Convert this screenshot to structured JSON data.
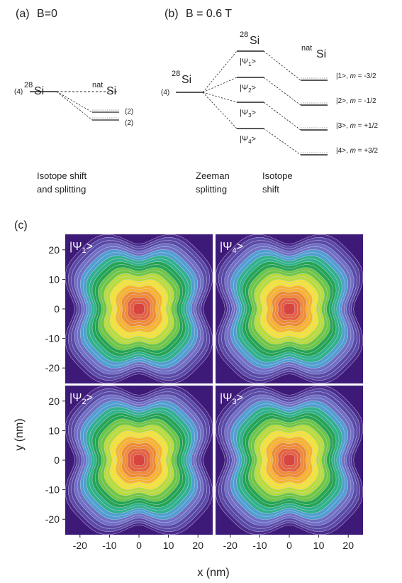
{
  "panel_a": {
    "label": "(a)",
    "title": "B=0",
    "left_sup": "28",
    "left_el": "Si",
    "right_sup": "nat",
    "right_el": "Si",
    "degeneracy_left": "(4)",
    "degeneracy_right_1": "(2)",
    "degeneracy_right_2": "(2)",
    "caption_line1": "Isotope shift",
    "caption_line2": "and splitting"
  },
  "panel_b": {
    "label": "(b)",
    "title": "B = 0.6 T",
    "left_sup": "28",
    "left_el": "Si",
    "top_sup": "28",
    "top_el": "Si",
    "right_sup": "nat",
    "right_el": "Si",
    "degeneracy_left": "(4)",
    "psi_levels": [
      {
        "ket": "|Ψ",
        "sub": "1",
        "close": ">"
      },
      {
        "ket": "|Ψ",
        "sub": "2",
        "close": ">"
      },
      {
        "ket": "|Ψ",
        "sub": "3",
        "close": ">"
      },
      {
        "ket": "|Ψ",
        "sub": "4",
        "close": ">"
      }
    ],
    "m_levels": [
      {
        "ket": "|1>, ",
        "m": "m",
        "val": " = -3/2"
      },
      {
        "ket": "|2>, ",
        "m": "m",
        "val": " = -1/2"
      },
      {
        "ket": "|3>, ",
        "m": "m",
        "val": " = +1/2"
      },
      {
        "ket": "|4>, ",
        "m": "m",
        "val": " = +3/2"
      }
    ],
    "caption_zeeman_1": "Zeeman",
    "caption_zeeman_2": "splitting",
    "caption_isotope_1": "Isotope",
    "caption_isotope_2": "shift"
  },
  "panel_c": {
    "label": "(c)",
    "x_label": "x (nm)",
    "y_label": "y (nm)",
    "x_ticks": [
      "-20",
      "-10",
      "0",
      "10",
      "20"
    ],
    "y_ticks": [
      "20",
      "10",
      "0",
      "-10",
      "-20"
    ],
    "subplots": [
      {
        "ket": "|Ψ",
        "sub": "1",
        "close": ">"
      },
      {
        "ket": "|Ψ",
        "sub": "4",
        "close": ">"
      },
      {
        "ket": "|Ψ",
        "sub": "2",
        "close": ">"
      },
      {
        "ket": "|Ψ",
        "sub": "3",
        "close": ">"
      }
    ],
    "colors": {
      "background": "#3d1a78",
      "contour_line": "#d8d4f0",
      "ramp": [
        "#4a2a8a",
        "#5a4aa6",
        "#6f6fc4",
        "#4f9fd0",
        "#2fb28a",
        "#23a552",
        "#6cc644",
        "#b8dc3a",
        "#f2e23a",
        "#f7b32f",
        "#ef8b34",
        "#e4603e",
        "#d64540"
      ]
    }
  }
}
